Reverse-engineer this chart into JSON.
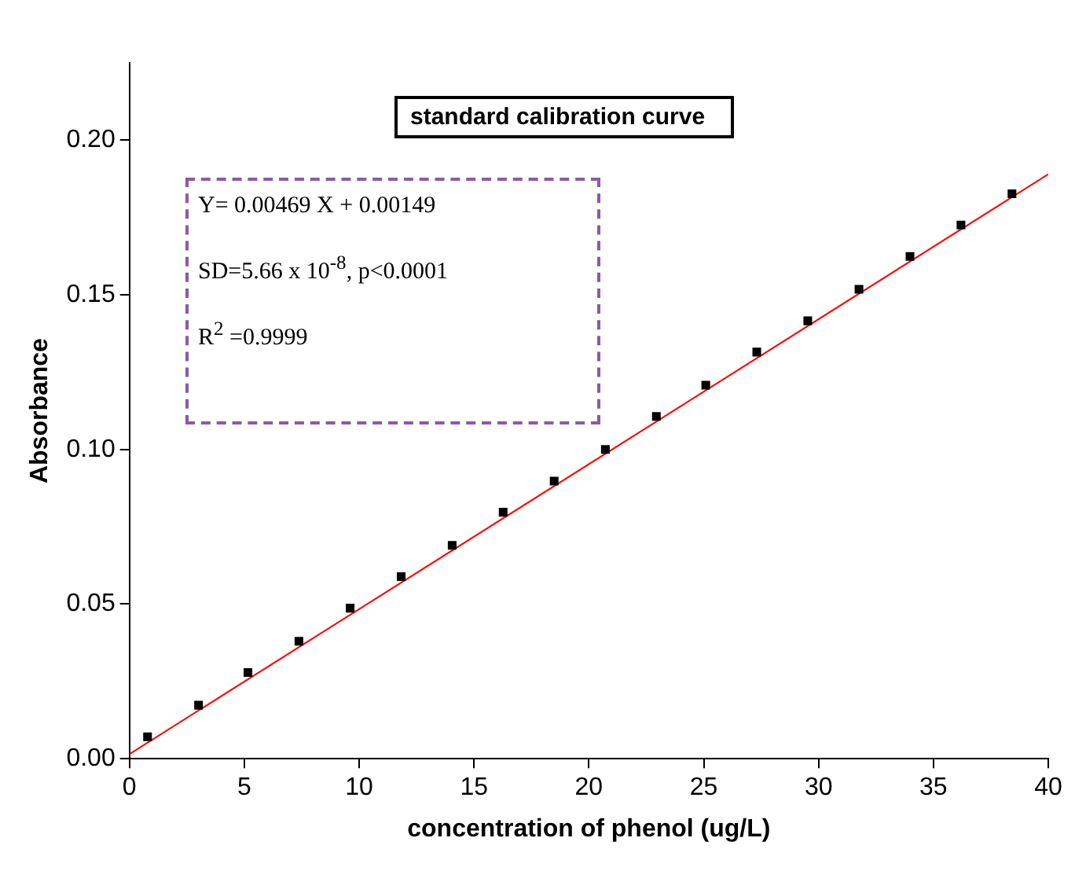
{
  "chart_data": {
    "type": "scatter",
    "title": "standard calibration curve",
    "xlabel": "concentration of phenol (ug/L)",
    "ylabel": "Absorbance",
    "series": [
      {
        "type": "scatter",
        "color": "#000000",
        "marker": "square",
        "x": [
          0.79,
          3.01,
          5.16,
          7.38,
          9.61,
          11.83,
          14.05,
          16.27,
          18.49,
          20.72,
          22.94,
          25.09,
          27.31,
          29.53,
          31.76,
          33.98,
          36.2,
          38.42
        ],
        "values": [
          0.0071,
          0.0173,
          0.0279,
          0.038,
          0.0487,
          0.0589,
          0.069,
          0.0797,
          0.0898,
          0.1,
          0.1107,
          0.1208,
          0.1315,
          0.1416,
          0.1518,
          0.1624,
          0.1726,
          0.1827
        ]
      },
      {
        "type": "line",
        "color": "#ff0000",
        "marker": "none",
        "x": [
          0,
          40
        ],
        "values": [
          0.0015,
          0.189
        ]
      }
    ],
    "annotations": [
      "Y= 0.00469 X + 0.00149",
      "SD=5.66 x 10$^{-8}$, p<0.0001",
      "R$^{2}$ =0.9999"
    ],
    "xlim": [
      0,
      40
    ],
    "xticks": [
      0,
      5,
      10,
      15,
      20,
      25,
      30,
      35,
      40
    ],
    "ylim": [
      0,
      0.225
    ],
    "yticks": [
      {
        "value": 0,
        "label": "0.00"
      },
      {
        "value": 0.05,
        "label": "0.05"
      },
      {
        "value": 0.1,
        "label": "0.10"
      },
      {
        "value": 0.15,
        "label": "0.15"
      },
      {
        "value": 0.2,
        "label": "0.20"
      }
    ],
    "grid": false,
    "legend": false
  }
}
